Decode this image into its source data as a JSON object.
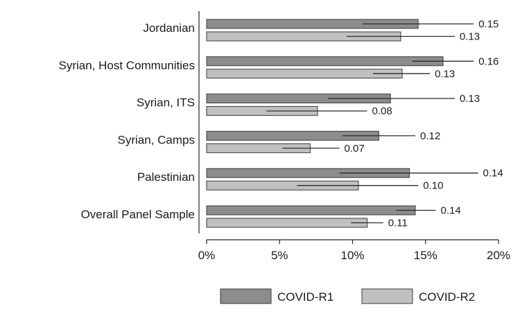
{
  "chart_data": {
    "type": "bar",
    "orientation": "horizontal",
    "title": "",
    "xlabel": "",
    "ylabel": "",
    "xlim": [
      0,
      0.2
    ],
    "x_ticks": [
      0,
      0.05,
      0.1,
      0.15,
      0.2
    ],
    "x_tick_labels": [
      "0%",
      "5%",
      "10%",
      "15%",
      "20%"
    ],
    "grid": false,
    "legend_position": "bottom",
    "categories": [
      "Jordanian",
      "Syrian, Host Communities",
      "Syrian, ITS",
      "Syrian, Camps",
      "Palestinian",
      "Overall Panel Sample"
    ],
    "series": [
      {
        "name": "COVID-R1",
        "color": "#8c8c8c",
        "values": [
          0.145,
          0.162,
          0.126,
          0.118,
          0.139,
          0.143
        ],
        "error_low": [
          0.107,
          0.141,
          0.083,
          0.093,
          0.091,
          0.13
        ],
        "error_high": [
          0.183,
          0.183,
          0.17,
          0.143,
          0.186,
          0.157
        ],
        "labels": [
          "0.15",
          "0.16",
          "0.13",
          "0.12",
          "0.14",
          "0.14"
        ]
      },
      {
        "name": "COVID-R2",
        "color": "#c0c0c0",
        "values": [
          0.133,
          0.134,
          0.076,
          0.071,
          0.104,
          0.11
        ],
        "error_low": [
          0.096,
          0.114,
          0.041,
          0.052,
          0.062,
          0.099
        ],
        "error_high": [
          0.17,
          0.153,
          0.11,
          0.091,
          0.145,
          0.121
        ],
        "labels": [
          "0.13",
          "0.13",
          "0.08",
          "0.07",
          "0.10",
          "0.11"
        ]
      }
    ]
  }
}
